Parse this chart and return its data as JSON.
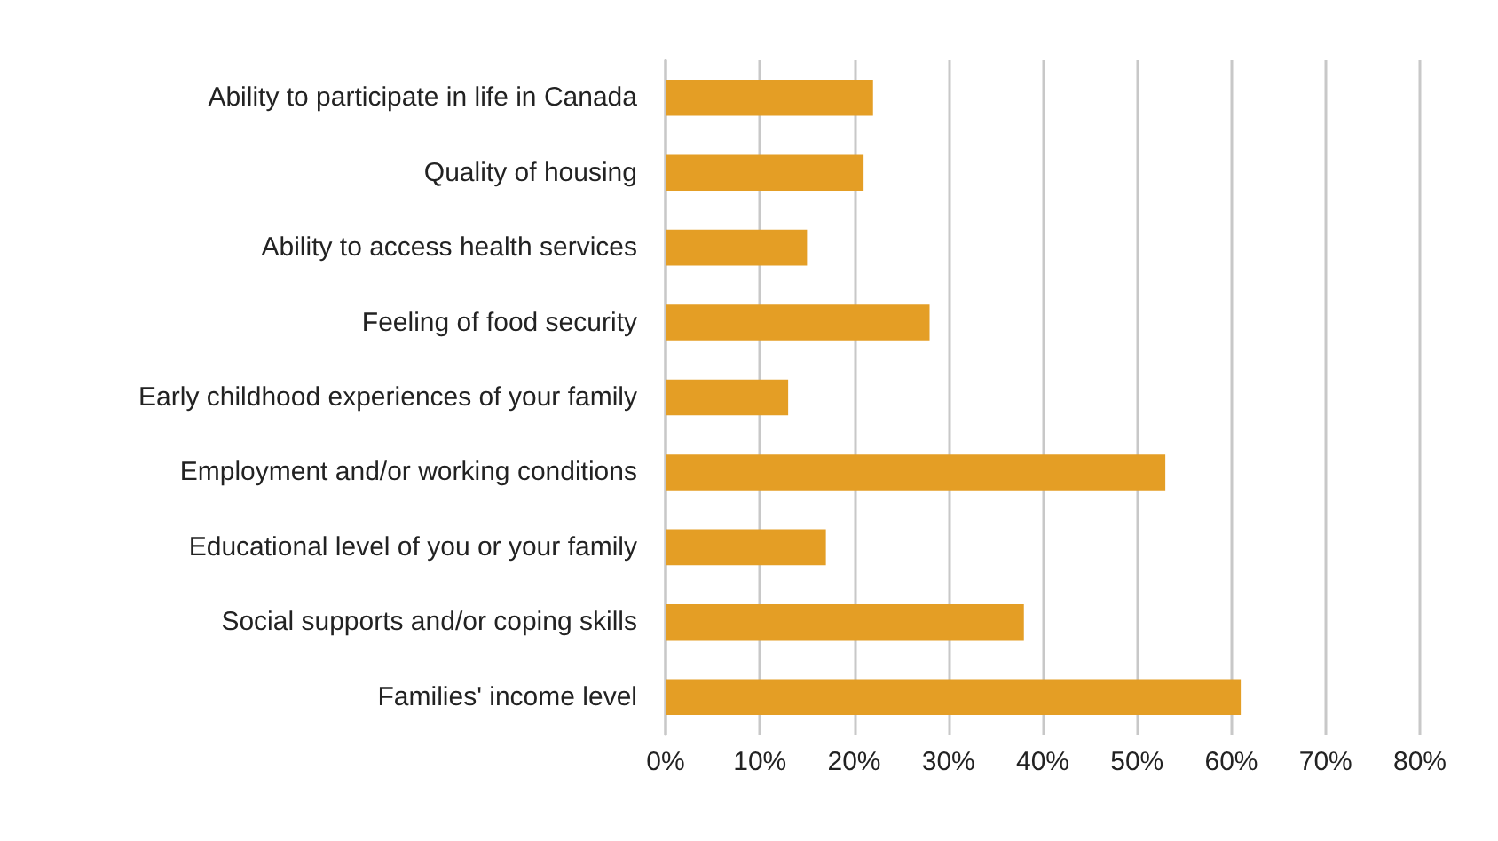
{
  "chart_data": {
    "type": "bar",
    "orientation": "horizontal",
    "categories": [
      "Ability to participate in life in Canada",
      "Quality of housing",
      "Ability to access health services",
      "Feeling of food security",
      "Early childhood experiences of your family",
      "Employment and/or working conditions",
      "Educational level of you or your family",
      "Social supports and/or coping skills",
      "Families' income level"
    ],
    "values": [
      22,
      21,
      15,
      28,
      13,
      53,
      17,
      38,
      61
    ],
    "color": "#e49e25",
    "xlim": [
      0,
      80
    ],
    "xticks": [
      {
        "value": 0,
        "label": "0%"
      },
      {
        "value": 10,
        "label": "10%"
      },
      {
        "value": 20,
        "label": "20%"
      },
      {
        "value": 30,
        "label": "30%"
      },
      {
        "value": 40,
        "label": "40%"
      },
      {
        "value": 50,
        "label": "50%"
      },
      {
        "value": 60,
        "label": "60%"
      },
      {
        "value": 70,
        "label": "70%"
      },
      {
        "value": 80,
        "label": "80%"
      }
    ],
    "grid": "x"
  }
}
